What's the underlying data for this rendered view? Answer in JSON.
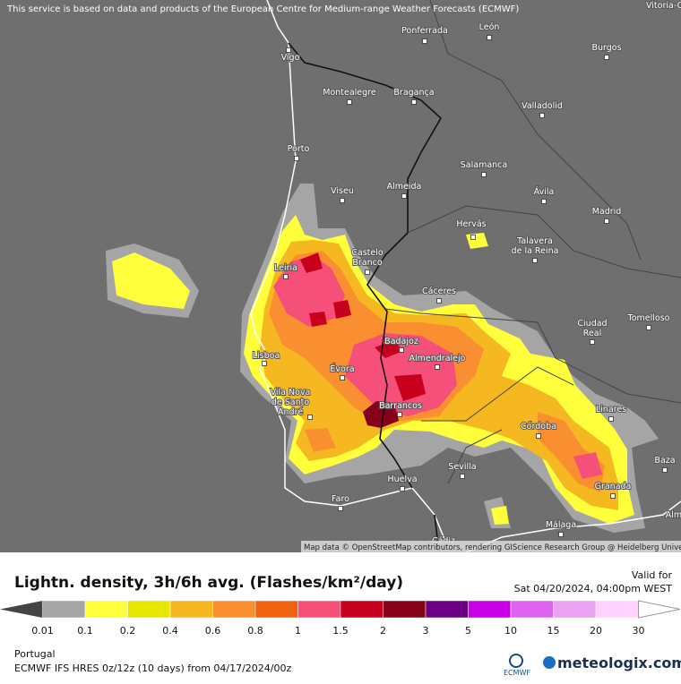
{
  "header": {
    "notice": "This service is based on data and products of the European Centre for Medium-range Weather Forecasts (ECMWF)",
    "attribution": "Map data © OpenStreetMap contributors, rendering GIScience Research Group @ Heidelberg University"
  },
  "map": {
    "cities": [
      [
        "Vitoria-G"
      ],
      [
        "Ponferrada"
      ],
      [
        "León"
      ],
      [
        "Burgos"
      ],
      [
        "Vigo"
      ],
      [
        "Montealegre"
      ],
      [
        "Bragança"
      ],
      [
        "Valladolid"
      ],
      [
        "Porto"
      ],
      [
        "Salamanca"
      ],
      [
        "Viseu"
      ],
      [
        "Almeida"
      ],
      [
        "Ávila"
      ],
      [
        "Madrid"
      ],
      [
        "Hervás"
      ],
      [
        "Castelo",
        "Branco"
      ],
      [
        "Talavera",
        "de la Reina"
      ],
      [
        "Leiria"
      ],
      [
        "Cáceres"
      ],
      [
        "Ciudad",
        "Real"
      ],
      [
        "Tomelloso"
      ],
      [
        "Badajoz"
      ],
      [
        "Lisboa"
      ],
      [
        "Almendralejo"
      ],
      [
        "Évora"
      ],
      [
        "Vila Nova",
        "de Santo",
        "André"
      ],
      [
        "Barrancos"
      ],
      [
        "Linares"
      ],
      [
        "Córdoba"
      ],
      [
        "Sevilla"
      ],
      [
        "Baza"
      ],
      [
        "Huelva"
      ],
      [
        "Granada"
      ],
      [
        "Faro"
      ],
      [
        "Málaga"
      ],
      [
        "Alm"
      ],
      [
        "Cádiz"
      ]
    ]
  },
  "legend": {
    "title": "Lightn. density, 3h/6h avg. (Flashes/km²/day)",
    "valid_label": "Valid for",
    "valid_time": "Sat 04/20/2024, 04:00pm WEST",
    "stops": [
      "0.01",
      "0.1",
      "0.2",
      "0.4",
      "0.6",
      "0.8",
      "1",
      "1.5",
      "2",
      "3",
      "5",
      "10",
      "15",
      "20",
      "30"
    ],
    "colors": [
      "#a5a5a5",
      "#ffff3c",
      "#e6e600",
      "#f5b821",
      "#f98f30",
      "#f0620f",
      "#f5507a",
      "#c8001e",
      "#850018",
      "#6b0082",
      "#c800e6",
      "#e062f0",
      "#eaa2f2",
      "#ffd2ff"
    ]
  },
  "footer": {
    "region": "Portugal",
    "model": "ECMWF IFS HRES 0z/12z (10 days) from 04/17/2024/00z",
    "ecmwf": "ECMWF",
    "brand": "meteologix.com"
  }
}
